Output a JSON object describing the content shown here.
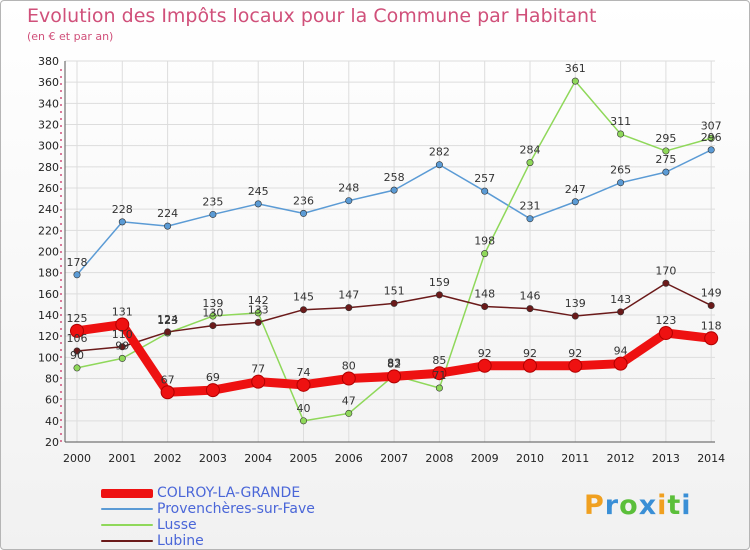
{
  "header": {
    "title": "Evolution des Impôts locaux pour la Commune par Habitant",
    "subtitle": "(en € et par an)"
  },
  "logo": {
    "letters": [
      "P",
      "r",
      "o",
      "x",
      "i",
      "t",
      "i"
    ],
    "colors": [
      "#f0a020",
      "#3a8fd6",
      "#5bbf3a",
      "#3a8fd6",
      "#f0a020",
      "#5bbf3a",
      "#3a8fd6"
    ]
  },
  "colors": {
    "grid": "#dddddd",
    "axis": "#555555"
  },
  "chart_data": {
    "type": "line",
    "title": "Evolution des Impôts locaux pour la Commune par Habitant",
    "subtitle": "(en € et par an)",
    "xlabel": "",
    "ylabel": "",
    "x": [
      "2000",
      "2001",
      "2002",
      "2003",
      "2004",
      "2005",
      "2006",
      "2007",
      "2008",
      "2009",
      "2010",
      "2011",
      "2012",
      "2013",
      "2014"
    ],
    "ylim": [
      20,
      380
    ],
    "yticks": [
      20,
      40,
      60,
      80,
      100,
      120,
      140,
      160,
      180,
      200,
      220,
      240,
      260,
      280,
      300,
      320,
      340,
      360,
      380
    ],
    "grid": true,
    "legend": "bottom-left",
    "series": [
      {
        "name": "COLROY-LA-GRANDE",
        "color": "#ee1111",
        "bold": true,
        "values": [
          125,
          131,
          67,
          69,
          77,
          74,
          80,
          82,
          85,
          92,
          92,
          92,
          94,
          123,
          118
        ]
      },
      {
        "name": "Provenchères-sur-Fave",
        "color": "#5b9bd5",
        "values": [
          178,
          228,
          224,
          235,
          245,
          236,
          248,
          258,
          282,
          257,
          231,
          247,
          265,
          275,
          296
        ]
      },
      {
        "name": "Lusse",
        "color": "#8fd85a",
        "values": [
          90,
          99,
          123,
          139,
          142,
          40,
          47,
          83,
          71,
          198,
          284,
          361,
          311,
          295,
          307
        ]
      },
      {
        "name": "Lubine",
        "color": "#6b1a1a",
        "values": [
          106,
          110,
          124,
          130,
          133,
          145,
          147,
          151,
          159,
          148,
          146,
          139,
          143,
          170,
          149
        ]
      }
    ],
    "labels": {
      "COLROY-LA-GRANDE": [
        "125",
        "131",
        "67",
        "69",
        "77",
        "74",
        "80",
        "82",
        "85",
        "92",
        "92",
        "92",
        "94",
        "123",
        "118"
      ],
      "Provenchères-sur-Fave": [
        "178",
        "228",
        "224",
        "235",
        "245",
        "236",
        "248",
        "258",
        "282",
        "257",
        "231",
        "247",
        "265",
        "275",
        "296"
      ],
      "Lusse": [
        "90",
        "99",
        "123",
        "139",
        "142",
        "40",
        "47",
        "83",
        "71",
        "198",
        "284",
        "361",
        "311",
        "295",
        "307"
      ],
      "Lubine": [
        "106",
        "110",
        "124",
        "130",
        "133",
        "145",
        "147",
        "151",
        "159",
        "148",
        "146",
        "139",
        "143",
        "170",
        "149"
      ]
    }
  }
}
